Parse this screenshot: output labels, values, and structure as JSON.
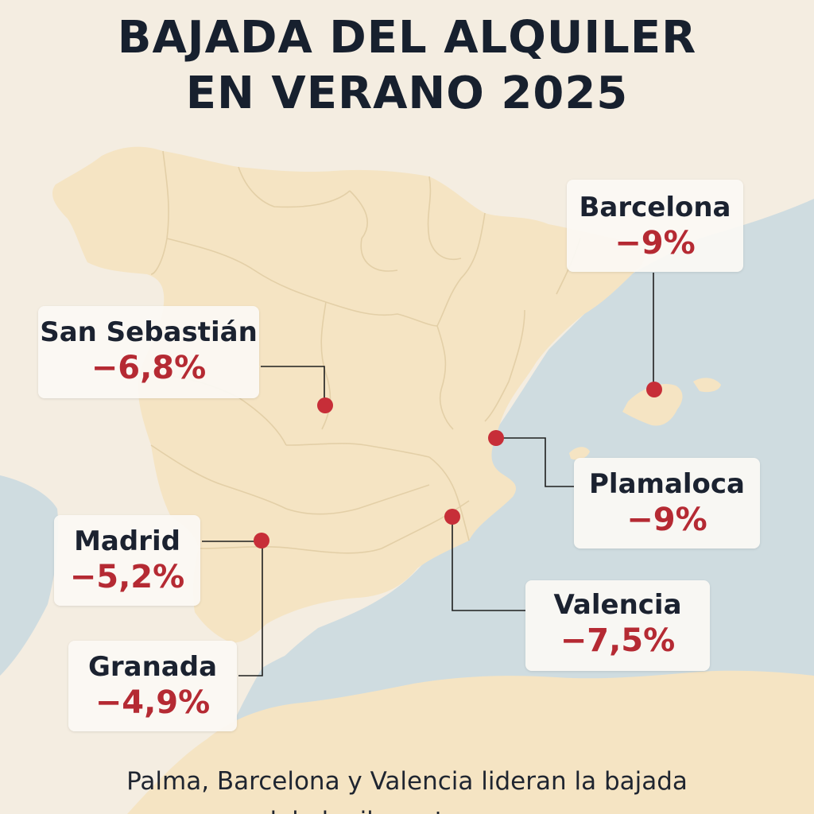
{
  "colors": {
    "background": "#f4ede1",
    "land": "#f5e4c3",
    "sea": "#cfdce0",
    "border": "#e3cfa7",
    "marker": "#c72e38",
    "title": "#17202e",
    "value": "#b52a33"
  },
  "title": {
    "line1": "BAJADA DEL ALQUILER",
    "line2": "EN VERANO 2025"
  },
  "callouts": [
    {
      "id": "barcelona",
      "city": "Barcelona",
      "value": "−9%"
    },
    {
      "id": "san-sebastian",
      "city": "San Sebastián",
      "value": "−6,8%"
    },
    {
      "id": "plamaloca",
      "city": "Plamaloca",
      "value": "−9%"
    },
    {
      "id": "madrid",
      "city": "Madrid",
      "value": "−5,2%"
    },
    {
      "id": "valencia",
      "city": "Valencia",
      "value": "−7,5%"
    },
    {
      "id": "granada",
      "city": "Granada",
      "value": "−4,9%"
    }
  ],
  "caption": {
    "line1": "Palma, Barcelona y Valencia lideran la bajada",
    "line2": "del alquiler este verano"
  }
}
